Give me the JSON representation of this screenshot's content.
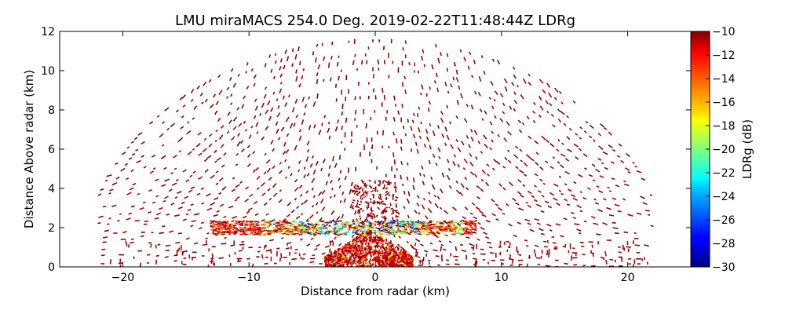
{
  "chart_data": {
    "type": "heatmap",
    "title": "LMU miraMACS 254.0 Deg. 2019-02-22T11:48:44Z  LDRg",
    "xlabel": "Distance from radar (km)",
    "ylabel": "Distance Above radar  (km)",
    "xlim": [
      -25,
      25
    ],
    "ylim": [
      0,
      12
    ],
    "xticks": [
      -20,
      -10,
      0,
      10,
      20
    ],
    "yticks": [
      0,
      2,
      4,
      6,
      8,
      10,
      12
    ],
    "colorbar": {
      "label": "LDRg (dB)",
      "range": [
        -30,
        -10
      ],
      "ticks": [
        -30,
        -28,
        -26,
        -24,
        -22,
        -20,
        -18,
        -16,
        -14,
        -12,
        -10
      ],
      "colormap": "jet"
    },
    "regions": [
      {
        "name": "sparse-echoes",
        "x_range": [
          -22,
          22
        ],
        "y_range": [
          0,
          12
        ],
        "typical_value": -10
      },
      {
        "name": "melting-layer",
        "x_range": [
          -13,
          8
        ],
        "y_range": [
          1.6,
          2.4
        ],
        "typical_value": -20
      },
      {
        "name": "near-field-clutter",
        "x_range": [
          -4,
          3
        ],
        "y_range": [
          0,
          1.8
        ],
        "typical_value": -11
      }
    ]
  }
}
